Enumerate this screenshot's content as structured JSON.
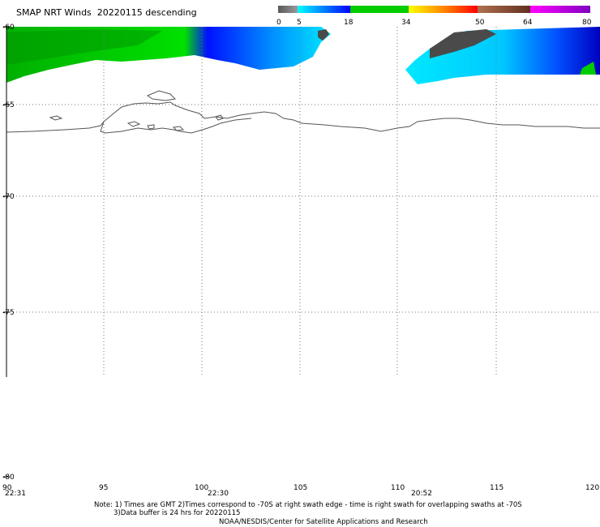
{
  "title": {
    "product": "SMAP NRT Winds",
    "date": "20220115",
    "pass": "descending"
  },
  "colorbar": {
    "labels": [
      "0",
      "5",
      "18",
      "34",
      "50",
      "64",
      "80"
    ],
    "segments": [
      {
        "from": 0,
        "to": 5,
        "colors": [
          "#5a5a5a",
          "#9a9a9a"
        ]
      },
      {
        "from": 5,
        "to": 18,
        "colors": [
          "#00ffff",
          "#0000ff"
        ]
      },
      {
        "from": 18,
        "to": 34,
        "colors": [
          "#00cc00",
          "#00cc00"
        ]
      },
      {
        "from": 34,
        "to": 50,
        "colors": [
          "#ffff00",
          "#ff0000"
        ]
      },
      {
        "from": 50,
        "to": 64,
        "colors": [
          "#b07050",
          "#603020"
        ]
      },
      {
        "from": 64,
        "to": 80,
        "colors": [
          "#ff00ff",
          "#8000c0"
        ]
      }
    ]
  },
  "axes": {
    "lat_labels": [
      "-60",
      "-65",
      "-70",
      "-75",
      "-80"
    ],
    "lon_labels": [
      "90",
      "95",
      "100",
      "105",
      "110",
      "115",
      "120"
    ],
    "lat_range": [
      -80,
      -60
    ],
    "lon_range": [
      90,
      120
    ],
    "grid": "dotted"
  },
  "swath_times": [
    "22:31",
    "22:30",
    "20:52"
  ],
  "notes": {
    "line1": "Note: 1) Times are GMT 2)Times correspond to -70S at right swath edge - time is right swath for overlapping swaths at -70S",
    "line2": "3)Data buffer is 24 hrs for 20220115",
    "credit": "NOAA/NESDIS/Center for Satellite Applications and Research"
  },
  "colors": {
    "coastline": "#555555",
    "grid": "#777777",
    "land_mask": "#ffffff"
  }
}
